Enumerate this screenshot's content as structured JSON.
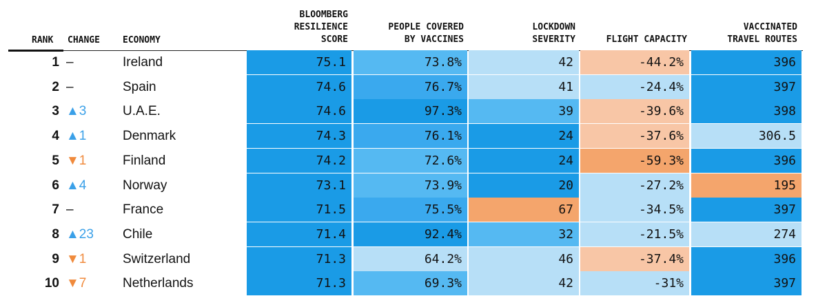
{
  "chart_data": {
    "type": "table",
    "columns": {
      "rank": "RANK",
      "change": "CHANGE",
      "economy": "ECONOMY",
      "score": "BLOOMBERG\nRESILIENCE\nSCORE",
      "vaccines": "PEOPLE COVERED\nBY VACCINES",
      "lockdown": "LOCKDOWN\nSEVERITY",
      "flight": "FLIGHT CAPACITY",
      "routes": "VACCINATED\nTRAVEL ROUTES"
    },
    "rows": [
      {
        "rank": "1",
        "change": "–",
        "economy": "Ireland",
        "score": "75.1",
        "vaccines": "73.8%",
        "lockdown": "42",
        "flight": "-44.2%",
        "routes": "396",
        "colors": [
          "#1a9be6",
          "#55b9f2",
          "#b7dff7",
          "#f8c6a6",
          "#1a9be6"
        ]
      },
      {
        "rank": "2",
        "change": "–",
        "economy": "Spain",
        "score": "74.6",
        "vaccines": "76.7%",
        "lockdown": "41",
        "flight": "-24.4%",
        "routes": "397",
        "colors": [
          "#1a9be6",
          "#3aa9ee",
          "#b7dff7",
          "#b7dff7",
          "#1a9be6"
        ]
      },
      {
        "rank": "3",
        "change": "▲3",
        "economy": "U.A.E.",
        "score": "74.6",
        "vaccines": "97.3%",
        "lockdown": "39",
        "flight": "-39.6%",
        "routes": "398",
        "colors": [
          "#1a9be6",
          "#1a9be6",
          "#55b9f2",
          "#f8c6a6",
          "#1a9be6"
        ]
      },
      {
        "rank": "4",
        "change": "▲1",
        "economy": "Denmark",
        "score": "74.3",
        "vaccines": "76.1%",
        "lockdown": "24",
        "flight": "-37.6%",
        "routes": "306.5",
        "colors": [
          "#1a9be6",
          "#3aa9ee",
          "#1a9be6",
          "#f8c6a6",
          "#b7dff7"
        ]
      },
      {
        "rank": "5",
        "change": "▼1",
        "economy": "Finland",
        "score": "74.2",
        "vaccines": "72.6%",
        "lockdown": "24",
        "flight": "-59.3%",
        "routes": "396",
        "colors": [
          "#1a9be6",
          "#55b9f2",
          "#1a9be6",
          "#f4a56c",
          "#1a9be6"
        ]
      },
      {
        "rank": "6",
        "change": "▲4",
        "economy": "Norway",
        "score": "73.1",
        "vaccines": "73.9%",
        "lockdown": "20",
        "flight": "-27.2%",
        "routes": "195",
        "colors": [
          "#1a9be6",
          "#55b9f2",
          "#1a9be6",
          "#b7dff7",
          "#f4a56c"
        ]
      },
      {
        "rank": "7",
        "change": "–",
        "economy": "France",
        "score": "71.5",
        "vaccines": "75.5%",
        "lockdown": "67",
        "flight": "-34.5%",
        "routes": "397",
        "colors": [
          "#1a9be6",
          "#3aa9ee",
          "#f4a56c",
          "#b7dff7",
          "#1a9be6"
        ]
      },
      {
        "rank": "8",
        "change": "▲23",
        "economy": "Chile",
        "score": "71.4",
        "vaccines": "92.4%",
        "lockdown": "32",
        "flight": "-21.5%",
        "routes": "274",
        "colors": [
          "#1a9be6",
          "#1a9be6",
          "#55b9f2",
          "#b7dff7",
          "#b7dff7"
        ]
      },
      {
        "rank": "9",
        "change": "▼1",
        "economy": "Switzerland",
        "score": "71.3",
        "vaccines": "64.2%",
        "lockdown": "46",
        "flight": "-37.4%",
        "routes": "396",
        "colors": [
          "#1a9be6",
          "#b7dff7",
          "#b7dff7",
          "#f8c6a6",
          "#1a9be6"
        ]
      },
      {
        "rank": "10",
        "change": "▼7",
        "economy": "Netherlands",
        "score": "71.3",
        "vaccines": "69.3%",
        "lockdown": "42",
        "flight": "-31%",
        "routes": "397",
        "colors": [
          "#1a9be6",
          "#55b9f2",
          "#b7dff7",
          "#b7dff7",
          "#1a9be6"
        ]
      }
    ]
  }
}
